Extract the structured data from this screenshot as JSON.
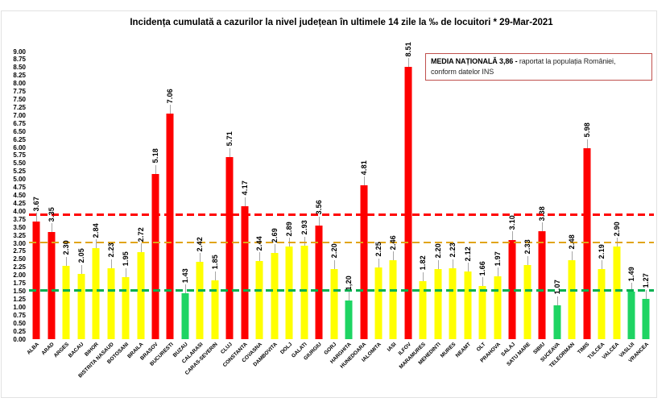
{
  "note_box": {
    "bold": "MEDIA NAȚIONALĂ  3,86 -",
    "line1_rest": " raportat la populația României,",
    "line2": "conform datelor INS",
    "border_color": "#c0504d"
  },
  "chart_data": {
    "type": "bar",
    "title": "Incidența cumulată a cazurilor la nivel județean în ultimele 14 zile la ‰ de locuitori * 29-Mar-2021",
    "xlabel": "",
    "ylabel": "",
    "ylim": [
      0,
      9
    ],
    "ytick_step": 0.25,
    "grid": "off",
    "legend": "none",
    "color_rule": "red >= 3.00, yellow 1.50-2.99, green < 1.50",
    "palette": {
      "red": "#fe0000",
      "yellow": "#ffff00",
      "green": "#1ed463"
    },
    "leader_line_color": "#a6a6a6",
    "categories": [
      "ALBA",
      "ARAD",
      "ARGES",
      "BACAU",
      "BIHOR",
      "BISTRITA NASAUD",
      "BOTOSANI",
      "BRAILA",
      "BRASOV",
      "BUCURESTI",
      "BUZAU",
      "CALARASI",
      "CARAS-SEVERIN",
      "CLUJ",
      "CONSTANTA",
      "COVASNA",
      "DAMBOVITA",
      "DOLJ",
      "GALATI",
      "GIURGIU",
      "GORJ",
      "HARGHITA",
      "HUNEDOARA",
      "IALOMITA",
      "IASI",
      "ILFOV",
      "MARAMURES",
      "MEHEDINTI",
      "MURES",
      "NEAMT",
      "OLT",
      "PRAHOVA",
      "SALAJ",
      "SATU MARE",
      "SIBIU",
      "SUCEAVA",
      "TELEORMAN",
      "TIMIS",
      "TULCEA",
      "VALCEA",
      "VASLUI",
      "VRANCEA"
    ],
    "values": [
      3.67,
      3.35,
      2.3,
      2.05,
      2.84,
      2.23,
      1.95,
      2.72,
      5.18,
      7.06,
      1.43,
      2.42,
      1.85,
      5.71,
      4.17,
      2.44,
      2.69,
      2.89,
      2.93,
      3.56,
      2.2,
      1.2,
      4.81,
      2.25,
      2.46,
      8.51,
      1.82,
      2.2,
      2.23,
      2.12,
      1.66,
      1.97,
      3.1,
      2.33,
      3.38,
      1.07,
      2.48,
      5.98,
      2.19,
      2.9,
      1.49,
      1.27
    ],
    "value_labels": [
      "3.67",
      "3.35",
      "2.30",
      "2.05",
      "2.84",
      "2.23",
      "1.95",
      "2.72",
      "5.18",
      "7.06",
      "1.43",
      "2.42",
      "1.85",
      "5.71",
      "4.17",
      "2.44",
      "2.69",
      "2.89",
      "2.93",
      "3.56",
      "2.20",
      "1,20",
      "4.81",
      "2.25",
      "2.46",
      "8.51",
      "1.82",
      "2.20",
      "2.23",
      "2.12",
      "1.66",
      "1.97",
      "3.10",
      "2.33",
      "3.38",
      "1.07",
      "2.48",
      "5.98",
      "2.19",
      "2.90",
      "1.49",
      "1.27"
    ],
    "bar_color_keys": [
      "red",
      "red",
      "yellow",
      "yellow",
      "yellow",
      "yellow",
      "yellow",
      "yellow",
      "red",
      "red",
      "green",
      "yellow",
      "yellow",
      "red",
      "red",
      "yellow",
      "yellow",
      "yellow",
      "yellow",
      "red",
      "yellow",
      "green",
      "red",
      "yellow",
      "yellow",
      "red",
      "yellow",
      "yellow",
      "yellow",
      "yellow",
      "yellow",
      "yellow",
      "red",
      "yellow",
      "red",
      "green",
      "yellow",
      "red",
      "yellow",
      "yellow",
      "green",
      "green"
    ],
    "reference_lines": [
      {
        "name": "media-nationala",
        "value": 3.86,
        "color": "#ff0000",
        "thickness": 3
      },
      {
        "name": "prag-3-00",
        "value": 3.0,
        "color": "#e1a419",
        "thickness": 2.5
      },
      {
        "name": "prag-1-50",
        "value": 1.5,
        "color": "#00b050",
        "thickness": 2.5
      }
    ]
  }
}
